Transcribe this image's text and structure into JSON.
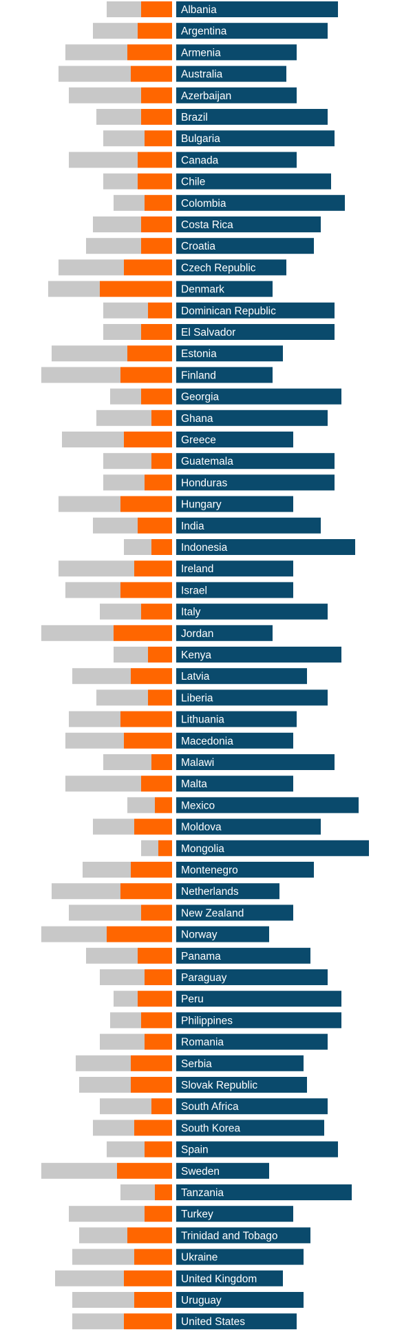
{
  "chart_data": {
    "type": "bar",
    "layout": "diverging-stacked-horizontal",
    "title": "",
    "xlabel": "",
    "ylabel": "",
    "colors": {
      "light_segment": "#c8c8c8",
      "mid_segment": "#ff6600",
      "right_bar": "#0a4a6c",
      "label_text": "#ffffff"
    },
    "categories": [
      "Albania",
      "Argentina",
      "Armenia",
      "Australia",
      "Azerbaijan",
      "Brazil",
      "Bulgaria",
      "Canada",
      "Chile",
      "Colombia",
      "Costa Rica",
      "Croatia",
      "Czech Republic",
      "Denmark",
      "Dominican Republic",
      "El Salvador",
      "Estonia",
      "Finland",
      "Georgia",
      "Ghana",
      "Greece",
      "Guatemala",
      "Honduras",
      "Hungary",
      "India",
      "Indonesia",
      "Ireland",
      "Israel",
      "Italy",
      "Jordan",
      "Kenya",
      "Latvia",
      "Liberia",
      "Lithuania",
      "Macedonia",
      "Malawi",
      "Malta",
      "Mexico",
      "Moldova",
      "Mongolia",
      "Montenegro",
      "Netherlands",
      "New Zealand",
      "Norway",
      "Panama",
      "Paraguay",
      "Peru",
      "Philippines",
      "Romania",
      "Serbia",
      "Slovak Republic",
      "South Africa",
      "South Korea",
      "Spain",
      "Sweden",
      "Tanzania",
      "Turkey",
      "Trinidad and Tobago",
      "Ukraine",
      "United Kingdom",
      "Uruguay",
      "United States"
    ],
    "series": [
      {
        "key": "orange",
        "values": [
          9,
          10,
          13,
          12,
          9,
          9,
          8,
          10,
          10,
          8,
          9,
          9,
          14,
          21,
          7,
          9,
          13,
          15,
          9,
          6,
          14,
          6,
          8,
          15,
          10,
          6,
          11,
          15,
          9,
          17,
          7,
          12,
          7,
          15,
          14,
          6,
          9,
          5,
          11,
          4,
          12,
          15,
          9,
          19,
          10,
          8,
          10,
          9,
          8,
          12,
          12,
          6,
          11,
          8,
          16,
          5,
          8,
          13,
          11,
          14,
          11,
          14
        ]
      },
      {
        "key": "grey",
        "values": [
          10,
          13,
          18,
          21,
          21,
          13,
          12,
          20,
          10,
          9,
          14,
          16,
          19,
          15,
          13,
          11,
          22,
          23,
          9,
          16,
          18,
          14,
          12,
          18,
          13,
          8,
          22,
          16,
          12,
          21,
          10,
          17,
          15,
          15,
          17,
          14,
          22,
          8,
          12,
          5,
          14,
          20,
          21,
          19,
          15,
          13,
          7,
          9,
          13,
          16,
          15,
          15,
          12,
          11,
          22,
          10,
          22,
          14,
          18,
          20,
          18,
          15
        ]
      },
      {
        "key": "blue",
        "values": [
          47,
          44,
          35,
          32,
          35,
          44,
          46,
          35,
          45,
          49,
          42,
          40,
          32,
          28,
          46,
          46,
          31,
          28,
          48,
          44,
          34,
          46,
          46,
          34,
          42,
          52,
          34,
          34,
          44,
          28,
          48,
          38,
          44,
          35,
          34,
          46,
          34,
          53,
          42,
          56,
          40,
          30,
          34,
          27,
          39,
          44,
          48,
          48,
          44,
          37,
          38,
          44,
          43,
          47,
          27,
          51,
          34,
          39,
          37,
          31,
          37,
          35
        ]
      }
    ]
  }
}
